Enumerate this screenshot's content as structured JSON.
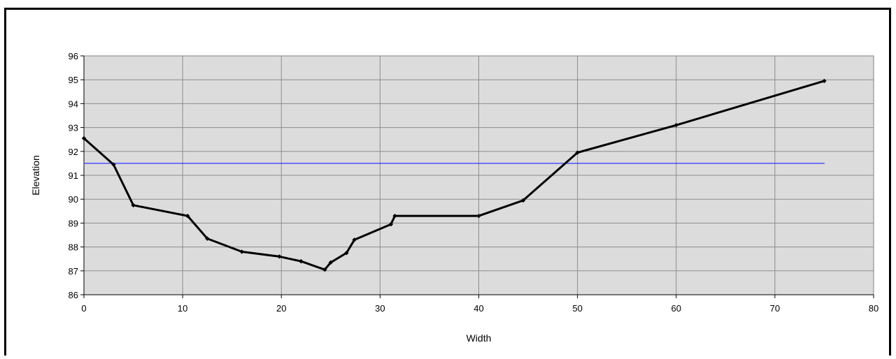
{
  "chart_data": {
    "type": "line",
    "title": "",
    "xlabel": "Width",
    "ylabel": "Elevation",
    "xlim": [
      0,
      80
    ],
    "ylim": [
      86,
      96
    ],
    "xticks": [
      0,
      10,
      20,
      30,
      40,
      50,
      60,
      70,
      80
    ],
    "yticks": [
      86,
      87,
      88,
      89,
      90,
      91,
      92,
      93,
      94,
      95,
      96
    ],
    "grid": true,
    "legend": "none",
    "plot_background": "#dcdcdc",
    "series": [
      {
        "color": "#000000",
        "markers": true,
        "x": [
          0,
          3,
          5,
          10.5,
          12.5,
          16,
          19.8,
          22,
          24.4,
          25,
          26.6,
          27.4,
          31.1,
          31.5,
          40,
          44.5,
          50,
          60,
          75
        ],
        "y": [
          92.55,
          91.45,
          89.75,
          89.3,
          88.35,
          87.8,
          87.6,
          87.4,
          87.05,
          87.35,
          87.75,
          88.3,
          88.95,
          89.3,
          89.3,
          89.95,
          91.95,
          93.1,
          94.95
        ]
      },
      {
        "color": "#3333ff",
        "markers": false,
        "x": [
          0,
          75
        ],
        "y": [
          91.5,
          91.5
        ]
      }
    ]
  }
}
